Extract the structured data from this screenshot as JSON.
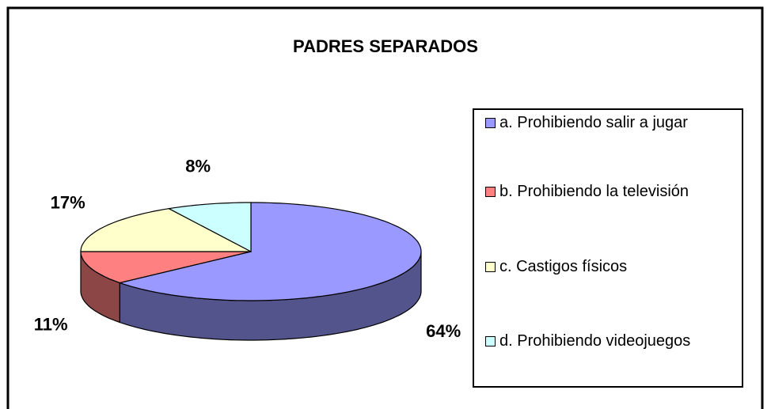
{
  "chart_data": {
    "type": "pie",
    "title": "PADRES SEPARADOS",
    "categories": [
      "a. Prohibiendo salir a jugar",
      "b. Prohibiendo la televisión",
      "c. Castigos físicos",
      "d. Prohibiendo videojuegos"
    ],
    "values": [
      64,
      11,
      17,
      8
    ],
    "value_labels": [
      "64%",
      "11%",
      "17%",
      "8%"
    ],
    "colors": [
      "#9999ff",
      "#ff8080",
      "#ffffcc",
      "#ccffff"
    ],
    "legend": "right"
  }
}
